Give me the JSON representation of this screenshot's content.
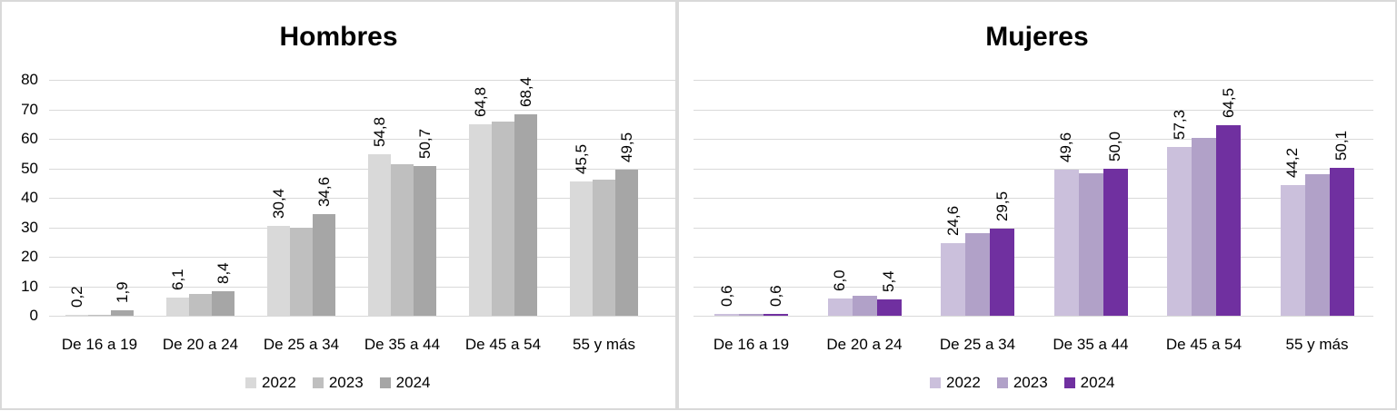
{
  "chart_data": [
    {
      "type": "bar",
      "title": "Hombres",
      "categories": [
        "De 16 a 19",
        "De 20 a 24",
        "De 25 a 34",
        "De 35 a 44",
        "De 45 a 54",
        "55 y más"
      ],
      "series": [
        {
          "name": "2022",
          "color": "#d9d9d9",
          "values": [
            0.2,
            6.1,
            30.4,
            54.8,
            64.8,
            45.5
          ],
          "labels": [
            "0,2",
            "6,1",
            "30,4",
            "54,8",
            "64,8",
            "45,5"
          ]
        },
        {
          "name": "2023",
          "color": "#bfbfbf",
          "values": [
            0.4,
            7.4,
            30.0,
            51.3,
            66.0,
            46.2
          ],
          "labels": [
            "",
            "",
            "",
            "",
            "",
            ""
          ]
        },
        {
          "name": "2024",
          "color": "#a6a6a6",
          "values": [
            1.9,
            8.4,
            34.6,
            50.7,
            68.4,
            49.5
          ],
          "labels": [
            "1,9",
            "8,4",
            "34,6",
            "50,7",
            "68,4",
            "49,5"
          ]
        }
      ],
      "xlabel": "",
      "ylabel": "",
      "ylim": [
        0,
        80
      ],
      "yticks": [
        "0",
        "10",
        "20",
        "30",
        "40",
        "50",
        "60",
        "70",
        "80"
      ],
      "grid": true,
      "legend_position": "bottom"
    },
    {
      "type": "bar",
      "title": "Mujeres",
      "categories": [
        "De 16 a 19",
        "De 20 a 24",
        "De 25 a 34",
        "De 35 a 44",
        "De 45 a 54",
        "55 y más"
      ],
      "series": [
        {
          "name": "2022",
          "color": "#cbc0dc",
          "values": [
            0.6,
            6.0,
            24.6,
            49.6,
            57.3,
            44.2
          ],
          "labels": [
            "0,6",
            "6,0",
            "24,6",
            "49,6",
            "57,3",
            "44,2"
          ]
        },
        {
          "name": "2023",
          "color": "#b1a1c8",
          "values": [
            0.7,
            6.8,
            28.0,
            48.3,
            60.2,
            48.0
          ],
          "labels": [
            "",
            "",
            "",
            "",
            "",
            ""
          ]
        },
        {
          "name": "2024",
          "color": "#7030a0",
          "values": [
            0.6,
            5.4,
            29.5,
            50.0,
            64.5,
            50.1
          ],
          "labels": [
            "0,6",
            "5,4",
            "29,5",
            "50,0",
            "64,5",
            "50,1"
          ]
        }
      ],
      "xlabel": "",
      "ylabel": "",
      "ylim": [
        0,
        80
      ],
      "yticks": [],
      "grid": true,
      "legend_position": "bottom"
    }
  ]
}
